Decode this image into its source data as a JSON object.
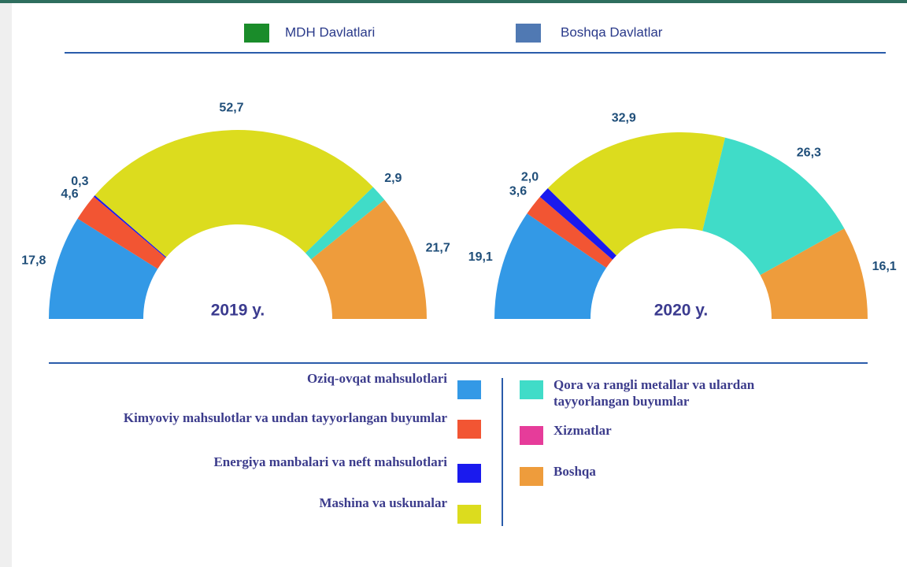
{
  "series_legend": [
    {
      "name": "MDH Davlatlari",
      "color": "#1a8c2a"
    },
    {
      "name": "Boshqa Davlatlar",
      "color": "#5079b3"
    }
  ],
  "legend": {
    "categories": [
      "Oziq-ovqat mahsulotlari",
      "Kimyoviy mahsulotlar va undan tayyorlangan buyumlar",
      "Energiya manbalari va neft mahsulotlari",
      "Mashina va uskunalar",
      "Qora va rangli metallar va ulardan tayyorlangan buyumlar",
      "Xizmatlar",
      "Boshqa"
    ],
    "colors": [
      "#3399e6",
      "#f25533",
      "#1a1aee",
      "#dcdc1e",
      "#40dcc8",
      "#e63c9a",
      "#ee9c3c"
    ]
  },
  "chart_data": [
    {
      "type": "pie",
      "title": "2019 y.",
      "values": [
        17.8,
        4.6,
        0.3,
        52.7,
        2.9,
        null,
        21.7
      ],
      "value_labels": [
        "17,8",
        "4,6",
        "0,3",
        "52,7",
        "2,9",
        null,
        "21,7"
      ]
    },
    {
      "type": "pie",
      "title": "2020 y.",
      "values": [
        19.1,
        3.6,
        2.0,
        32.9,
        26.3,
        null,
        16.1
      ],
      "value_labels": [
        "19,1",
        "3,6",
        "2,0",
        "32,9",
        "26,3",
        null,
        "16,1"
      ]
    }
  ]
}
